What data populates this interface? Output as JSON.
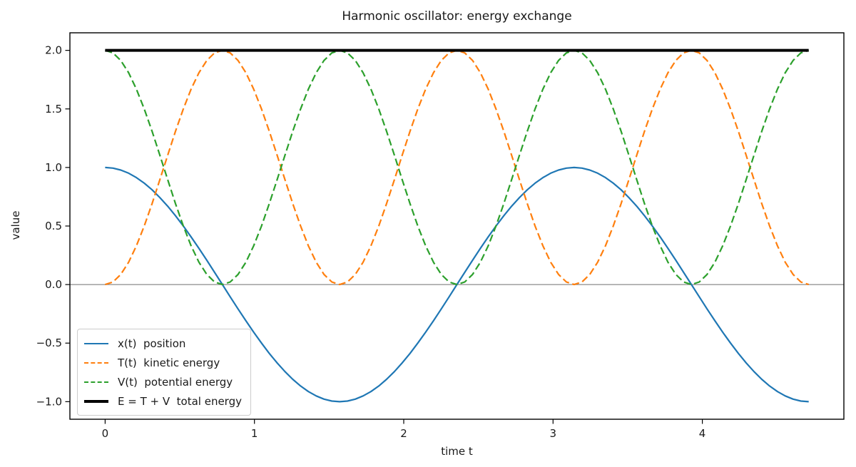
{
  "chart_data": {
    "type": "line",
    "title": "Harmonic oscillator: energy exchange",
    "xlabel": "time t",
    "ylabel": "value",
    "xlim": [
      -0.236,
      4.948
    ],
    "ylim": [
      -1.15,
      2.15
    ],
    "grid": false,
    "legend_position": "lower left",
    "x_ticks": {
      "values": [
        0,
        1,
        2,
        3,
        4
      ],
      "labels": [
        "0",
        "1",
        "2",
        "3",
        "4"
      ]
    },
    "y_ticks": {
      "values": [
        2.0,
        1.5,
        1.0,
        0.5,
        0.0,
        -0.5,
        -1.0
      ],
      "labels": [
        "2.0",
        "1.5",
        "1.0",
        "0.5",
        "0.0",
        "−0.5",
        "−1.0"
      ]
    },
    "zero_line": {
      "y": 0,
      "color": "#8c8c8c",
      "linewidth": 1.3
    },
    "t": [
      0,
      0.0524,
      0.1047,
      0.1571,
      0.2094,
      0.2618,
      0.3142,
      0.3665,
      0.4189,
      0.4712,
      0.5236,
      0.576,
      0.6283,
      0.6807,
      0.733,
      0.7854,
      0.8378,
      0.8901,
      0.9425,
      0.9948,
      1.0472,
      1.0996,
      1.1519,
      1.2043,
      1.2566,
      1.309,
      1.3614,
      1.4137,
      1.4661,
      1.5184,
      1.5708,
      1.6232,
      1.6755,
      1.7279,
      1.7802,
      1.8326,
      1.885,
      1.9373,
      1.9897,
      2.042,
      2.0944,
      2.1468,
      2.1991,
      2.2515,
      2.3038,
      2.3562,
      2.4086,
      2.4609,
      2.5133,
      2.5656,
      2.618,
      2.6704,
      2.7227,
      2.7751,
      2.8274,
      2.8798,
      2.9322,
      2.9845,
      3.0369,
      3.0892,
      3.1416,
      3.194,
      3.2463,
      3.2987,
      3.351,
      3.4034,
      3.4558,
      3.5081,
      3.5605,
      3.6128,
      3.6652,
      3.7176,
      3.7699,
      3.8223,
      3.8746,
      3.927,
      3.9794,
      4.0317,
      4.0841,
      4.1364,
      4.1888,
      4.2412,
      4.2935,
      4.3459,
      4.3982,
      4.4506,
      4.503,
      4.5553,
      4.6077,
      4.66,
      4.7124
    ],
    "series": [
      {
        "name": "x(t)  position",
        "color": "#1f77b4",
        "style": "solid",
        "linewidth": 2.2,
        "values": [
          1,
          0.9945,
          0.9781,
          0.9511,
          0.9135,
          0.866,
          0.809,
          0.7431,
          0.6691,
          0.5878,
          0.5,
          0.4067,
          0.309,
          0.2079,
          0.1045,
          0,
          -0.1045,
          -0.2079,
          -0.309,
          -0.4067,
          -0.5,
          -0.5878,
          -0.6691,
          -0.7431,
          -0.809,
          -0.866,
          -0.9135,
          -0.9511,
          -0.9781,
          -0.9945,
          -1,
          -0.9945,
          -0.9781,
          -0.9511,
          -0.9135,
          -0.866,
          -0.809,
          -0.7431,
          -0.6691,
          -0.5878,
          -0.5,
          -0.4067,
          -0.309,
          -0.2079,
          -0.1045,
          0,
          0.1045,
          0.2079,
          0.309,
          0.4067,
          0.5,
          0.5878,
          0.6691,
          0.7431,
          0.809,
          0.866,
          0.9135,
          0.9511,
          0.9781,
          0.9945,
          1,
          0.9945,
          0.9781,
          0.9511,
          0.9135,
          0.866,
          0.809,
          0.7431,
          0.6691,
          0.5878,
          0.5,
          0.4067,
          0.309,
          0.2079,
          0.1045,
          0,
          -0.1045,
          -0.2079,
          -0.309,
          -0.4067,
          -0.5,
          -0.5878,
          -0.6691,
          -0.7431,
          -0.809,
          -0.866,
          -0.9135,
          -0.9511,
          -0.9781,
          -0.9945,
          -1
        ]
      },
      {
        "name": "T(t)  kinetic energy",
        "color": "#ff7f0e",
        "style": "dashed",
        "linewidth": 2.2,
        "values": [
          0,
          0.0219,
          0.0865,
          0.191,
          0.3309,
          0.5,
          0.691,
          0.8955,
          1.1045,
          1.309,
          1.5,
          1.6691,
          1.809,
          1.9135,
          1.9781,
          2,
          1.9781,
          1.9135,
          1.809,
          1.6691,
          1.5,
          1.309,
          1.1045,
          0.8955,
          0.691,
          0.5,
          0.3309,
          0.191,
          0.0865,
          0.0219,
          0,
          0.0219,
          0.0865,
          0.191,
          0.3309,
          0.5,
          0.691,
          0.8955,
          1.1045,
          1.309,
          1.5,
          1.6691,
          1.809,
          1.9135,
          1.9781,
          2,
          1.9781,
          1.9135,
          1.809,
          1.6691,
          1.5,
          1.309,
          1.1045,
          0.8955,
          0.691,
          0.5,
          0.3309,
          0.191,
          0.0865,
          0.0219,
          0,
          0.0219,
          0.0865,
          0.191,
          0.3309,
          0.5,
          0.691,
          0.8955,
          1.1045,
          1.309,
          1.5,
          1.6691,
          1.809,
          1.9135,
          1.9781,
          2,
          1.9781,
          1.9135,
          1.809,
          1.6691,
          1.5,
          1.309,
          1.1045,
          0.8955,
          0.691,
          0.5,
          0.3309,
          0.191,
          0.0865,
          0.0219,
          0
        ]
      },
      {
        "name": "V(t)  potential energy",
        "color": "#2ca02c",
        "style": "dashed",
        "linewidth": 2.2,
        "values": [
          2,
          1.9781,
          1.9135,
          1.809,
          1.6691,
          1.5,
          1.309,
          1.1045,
          0.8955,
          0.691,
          0.5,
          0.3309,
          0.191,
          0.0865,
          0.0219,
          0,
          0.0219,
          0.0865,
          0.191,
          0.3309,
          0.5,
          0.691,
          0.8955,
          1.1045,
          1.309,
          1.5,
          1.6691,
          1.809,
          1.9135,
          1.9781,
          2,
          1.9781,
          1.9135,
          1.809,
          1.6691,
          1.5,
          1.309,
          1.1045,
          0.8955,
          0.691,
          0.5,
          0.3309,
          0.191,
          0.0865,
          0.0219,
          0,
          0.0219,
          0.0865,
          0.191,
          0.3309,
          0.5,
          0.691,
          0.8955,
          1.1045,
          1.309,
          1.5,
          1.6691,
          1.809,
          1.9135,
          1.9781,
          2,
          1.9781,
          1.9135,
          1.809,
          1.6691,
          1.5,
          1.309,
          1.1045,
          0.8955,
          0.691,
          0.5,
          0.3309,
          0.191,
          0.0865,
          0.0219,
          0,
          0.0219,
          0.0865,
          0.191,
          0.3309,
          0.5,
          0.691,
          0.8955,
          1.1045,
          1.309,
          1.5,
          1.6691,
          1.809,
          1.9135,
          1.9781,
          2
        ]
      },
      {
        "name": "E = T + V  total energy",
        "color": "#000000",
        "style": "solid",
        "linewidth": 4,
        "constant": 2
      }
    ]
  }
}
